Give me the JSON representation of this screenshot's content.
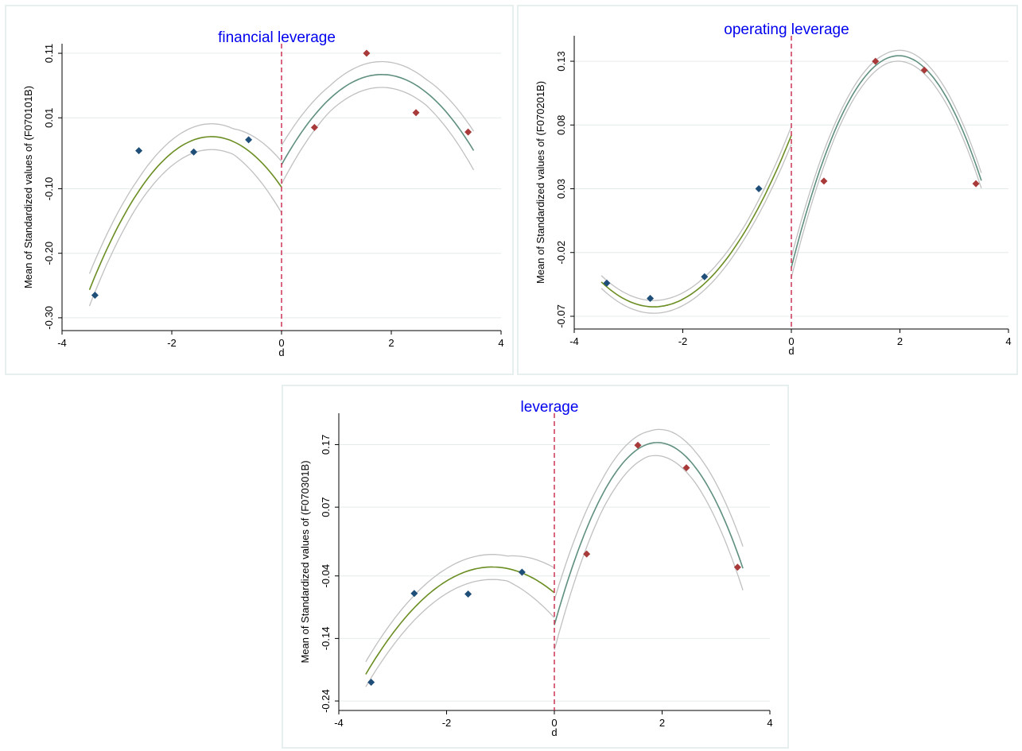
{
  "colors": {
    "title": "#0000ee",
    "marker_left": "#1f4e79",
    "marker_right": "#a83a3a",
    "fit_left": "#6b8e23",
    "fit_right": "#5f8f7f",
    "ci": "#c0c0c0",
    "cutoff": "#cc3355",
    "grid": "#e4ecea",
    "axis": "#000000"
  },
  "chart_data": [
    {
      "type": "scatter",
      "title": "financial leverage",
      "xlabel": "d",
      "ylabel": "Mean of Standardized values of (F070101B)",
      "xlim": [
        -4,
        4
      ],
      "ylim": [
        -0.31,
        0.115
      ],
      "xticks": [
        "-4",
        "-2",
        "0",
        "2",
        "4"
      ],
      "xtick_values": [
        -4,
        -2,
        0,
        2,
        4
      ],
      "yticks": [
        "-0.30",
        "-0.20",
        "-0.10",
        "0.01",
        "0.11"
      ],
      "ytick_values": [
        -0.3,
        -0.2,
        -0.1,
        0.01,
        0.11
      ],
      "cutoff_x": 0,
      "points_left": {
        "x": [
          -3.4,
          -2.6,
          -1.6,
          -0.6
        ],
        "y": [
          -0.265,
          -0.041,
          -0.043,
          -0.024
        ]
      },
      "points_right": {
        "x": [
          0.6,
          1.55,
          2.45,
          3.4
        ],
        "y": [
          -0.005,
          0.11,
          0.018,
          -0.012
        ]
      },
      "fit_left": {
        "x": [
          -3.5,
          -2.5,
          -1.5,
          -0.5,
          0
        ],
        "y": [
          -0.255,
          -0.095,
          -0.02,
          -0.045,
          -0.1
        ]
      },
      "fit_right": {
        "x": [
          0,
          1,
          2,
          3,
          3.5
        ],
        "y": [
          -0.065,
          0.055,
          0.07,
          0.02,
          -0.04
        ]
      },
      "ci_halfwidth": {
        "left": [
          0.025,
          0.02,
          0.02,
          0.02,
          0.04
        ],
        "right": [
          0.03,
          0.02,
          0.02,
          0.02,
          0.03
        ]
      }
    },
    {
      "type": "scatter",
      "title": "operating leverage",
      "xlabel": "d",
      "ylabel": "Mean of Standardized values of (F070201B)",
      "xlim": [
        -4,
        4
      ],
      "ylim": [
        -0.075,
        0.145
      ],
      "xticks": [
        "-4",
        "-2",
        "0",
        "2",
        "4"
      ],
      "xtick_values": [
        -4,
        -2,
        0,
        2,
        4
      ],
      "yticks": [
        "-0.07",
        "-0.02",
        "0.03",
        "0.08",
        "0.13"
      ],
      "ytick_values": [
        -0.07,
        -0.02,
        0.03,
        0.08,
        0.13
      ],
      "cutoff_x": 0,
      "points_left": {
        "x": [
          -3.4,
          -2.6,
          -1.6,
          -0.6
        ],
        "y": [
          -0.044,
          -0.056,
          -0.039,
          0.03
        ]
      },
      "points_right": {
        "x": [
          0.6,
          1.55,
          2.45,
          3.4
        ],
        "y": [
          0.036,
          0.13,
          0.123,
          0.034
        ]
      },
      "fit_left": {
        "x": [
          -3.5,
          -2.5,
          -1.5,
          -0.5,
          0
        ],
        "y": [
          -0.045,
          -0.058,
          -0.042,
          0.02,
          0.075
        ]
      },
      "fit_right": {
        "x": [
          0,
          1,
          2,
          3,
          3.5
        ],
        "y": [
          -0.03,
          0.09,
          0.135,
          0.095,
          0.033
        ]
      },
      "ci_halfwidth": {
        "left": [
          0.005,
          0.005,
          0.005,
          0.005,
          0.007
        ],
        "right": [
          0.008,
          0.005,
          0.004,
          0.005,
          0.006
        ]
      }
    },
    {
      "type": "scatter",
      "title": "leverage",
      "xlabel": "d",
      "ylabel": "Mean of Standardized values of (F070301B)",
      "xlim": [
        -4,
        4
      ],
      "ylim": [
        -0.245,
        0.21
      ],
      "xticks": [
        "-4",
        "-2",
        "0",
        "2",
        "4"
      ],
      "xtick_values": [
        -4,
        -2,
        0,
        2,
        4
      ],
      "yticks": [
        "-0.24",
        "-0.14",
        "-0.04",
        "0.07",
        "0.17"
      ],
      "ytick_values": [
        -0.24,
        -0.14,
        -0.04,
        0.07,
        0.17
      ],
      "cutoff_x": 0,
      "points_left": {
        "x": [
          -3.4,
          -2.6,
          -1.6,
          -0.6
        ],
        "y": [
          -0.21,
          -0.068,
          -0.069,
          -0.034
        ]
      },
      "points_right": {
        "x": [
          0.6,
          1.55,
          2.45,
          3.4
        ],
        "y": [
          -0.005,
          0.169,
          0.133,
          -0.026
        ]
      },
      "fit_left": {
        "x": [
          -3.5,
          -2.5,
          -1.5,
          -0.5,
          0
        ],
        "y": [
          -0.2,
          -0.075,
          -0.035,
          -0.04,
          -0.065
        ]
      },
      "fit_right": {
        "x": [
          0,
          1,
          2,
          3,
          3.5
        ],
        "y": [
          -0.12,
          0.11,
          0.172,
          0.075,
          -0.025
        ]
      },
      "ci_halfwidth": {
        "left": [
          0.02,
          0.02,
          0.02,
          0.02,
          0.04
        ],
        "right": [
          0.04,
          0.025,
          0.02,
          0.025,
          0.035
        ]
      }
    }
  ]
}
